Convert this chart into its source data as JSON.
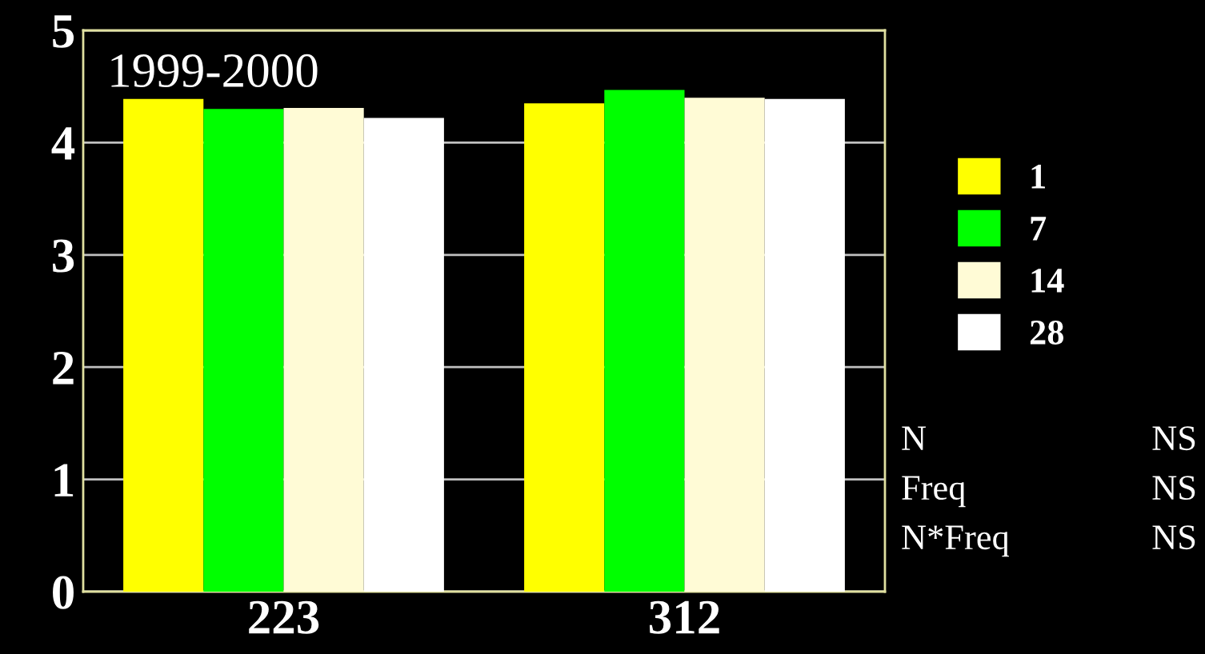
{
  "chart_data": {
    "type": "bar",
    "categories": [
      "223",
      "312"
    ],
    "series": [
      {
        "name": "1",
        "color": "#ffff00",
        "values": [
          4.39,
          4.35
        ]
      },
      {
        "name": "7",
        "color": "#00ff00",
        "values": [
          4.3,
          4.47
        ]
      },
      {
        "name": "14",
        "color": "#fffbd6",
        "values": [
          4.31,
          4.4
        ]
      },
      {
        "name": "28",
        "color": "#ffffff",
        "values": [
          4.22,
          4.39
        ]
      }
    ],
    "ylim": [
      0,
      5
    ],
    "yticks": [
      0,
      1,
      2,
      3,
      4,
      5
    ],
    "grid": "y",
    "legend": "right",
    "annotations": [
      "1999-2000",
      "N",
      "NS",
      "Freq",
      "NS",
      "N*Freq",
      "NS"
    ]
  }
}
